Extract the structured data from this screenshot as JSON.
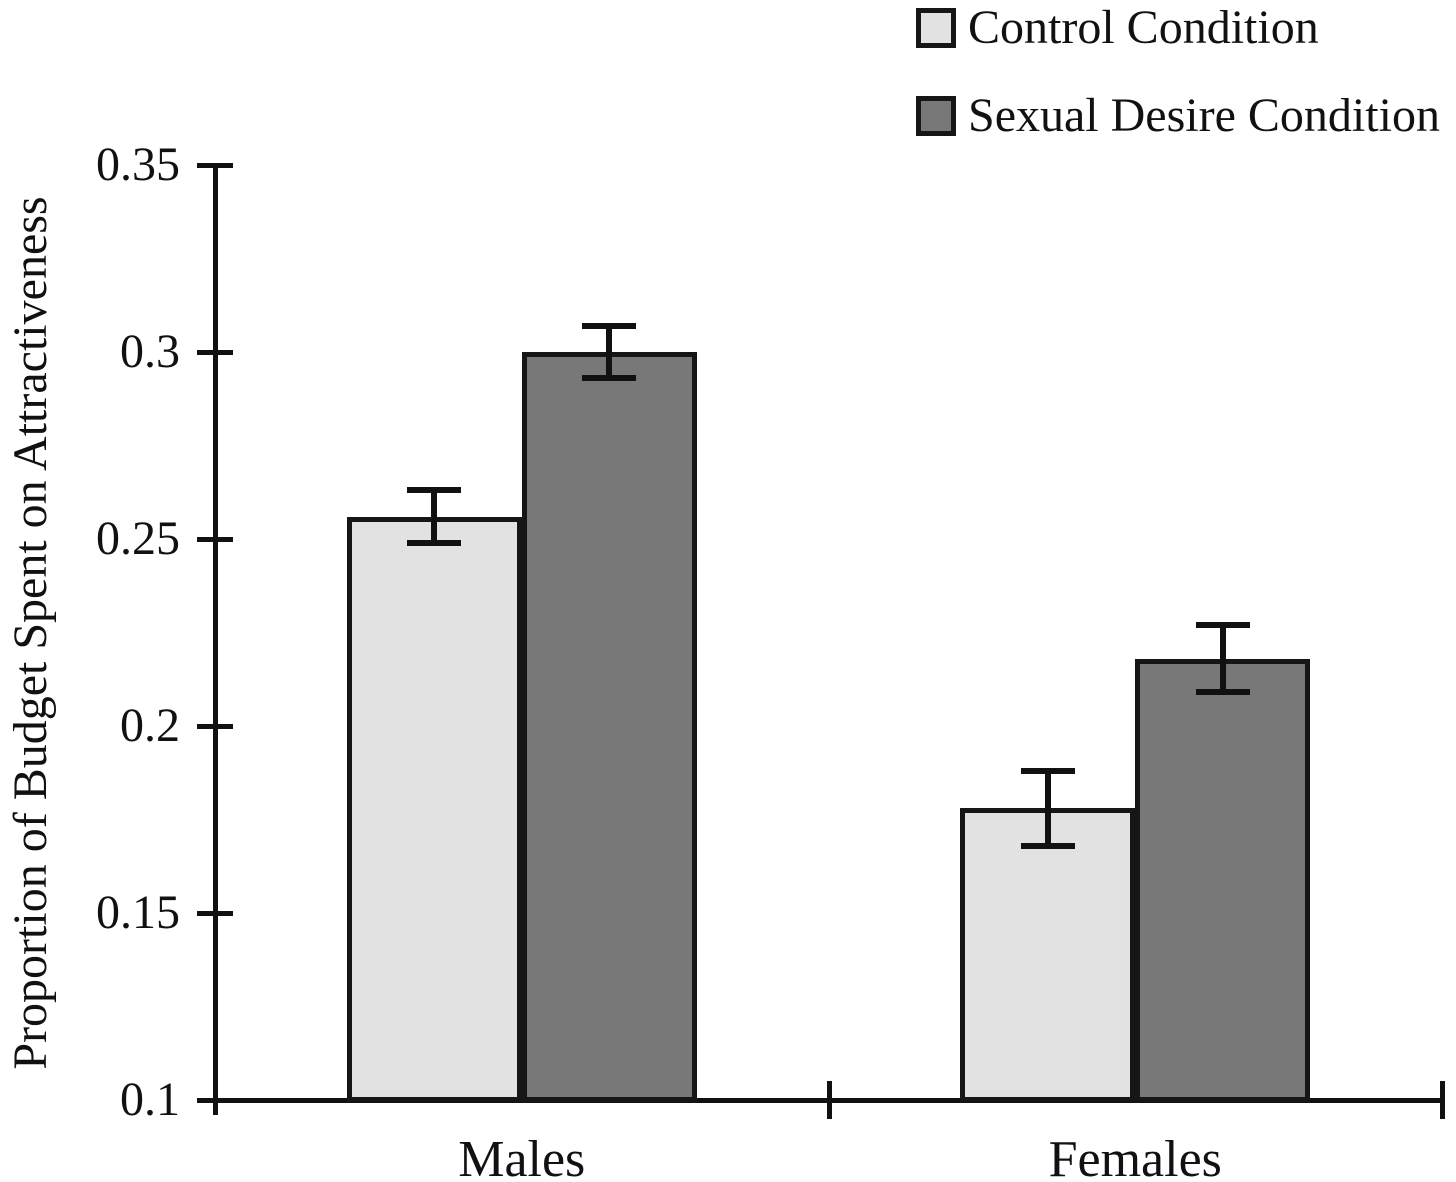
{
  "chart_data": {
    "type": "bar",
    "title": "",
    "categories": [
      "Males",
      "Females"
    ],
    "series": [
      {
        "name": "Control Condition",
        "color": "#e2e2e2",
        "values": [
          0.256,
          0.178
        ],
        "errors": [
          0.007,
          0.01
        ]
      },
      {
        "name": "Sexual Desire Condition",
        "color": "#787878",
        "values": [
          0.3,
          0.218
        ],
        "errors": [
          0.007,
          0.009
        ]
      }
    ],
    "xlabel": "",
    "ylabel": "Proportion of Budget Spent on Attractiveness",
    "ylim": [
      0.1,
      0.35
    ],
    "yticks": [
      0.1,
      0.15,
      0.2,
      0.25,
      0.3,
      0.35
    ],
    "grid": false,
    "legend_position": "top-right",
    "bar_edge_color": "#161616",
    "axis_color": "#111111",
    "error_bar_color": "#111111",
    "background_color": "#ffffff"
  }
}
